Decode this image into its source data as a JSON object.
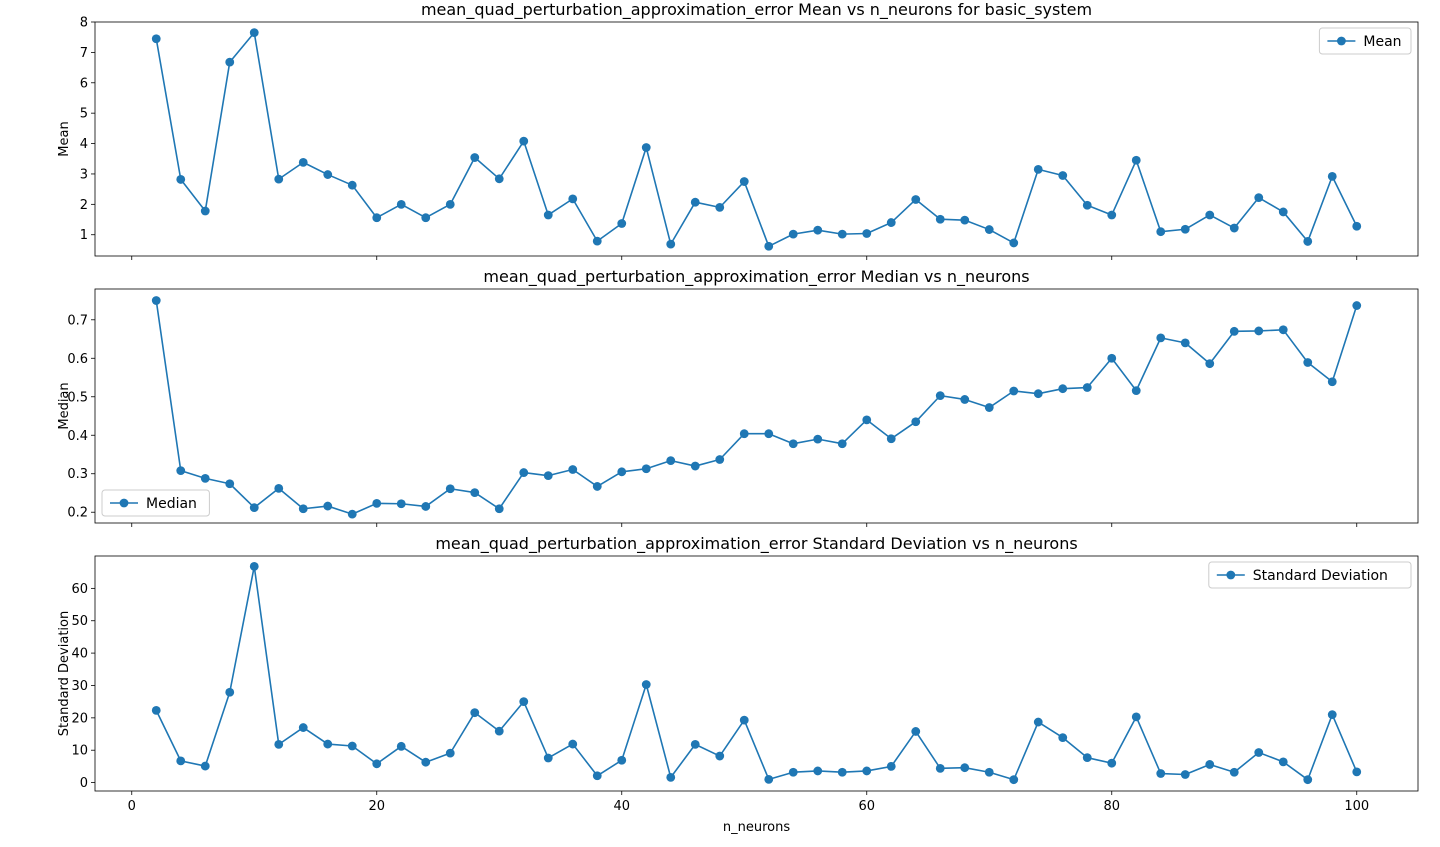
{
  "chart_data": [
    {
      "type": "line",
      "title": "mean_quad_perturbation_approximation_error Mean vs n_neurons for basic_system",
      "xlabel": "",
      "ylabel": "Mean",
      "xlim": [
        -3,
        105
      ],
      "ylim": [
        0.3,
        8.0
      ],
      "xticks": [
        0,
        20,
        40,
        60,
        80,
        100
      ],
      "yticks": [
        1,
        2,
        3,
        4,
        5,
        6,
        7,
        8
      ],
      "show_xtick_labels": false,
      "legend_position": "top-right",
      "color": "#1f77b4",
      "grid": false,
      "x": [
        2,
        4,
        6,
        8,
        10,
        12,
        14,
        16,
        18,
        20,
        22,
        24,
        26,
        28,
        30,
        32,
        34,
        36,
        38,
        40,
        42,
        44,
        46,
        48,
        50,
        52,
        54,
        56,
        58,
        60,
        62,
        64,
        66,
        68,
        70,
        72,
        74,
        76,
        78,
        80,
        82,
        84,
        86,
        88,
        90,
        92,
        94,
        96,
        98,
        100
      ],
      "series": [
        {
          "name": "Mean",
          "values": [
            7.45,
            2.82,
            1.78,
            6.68,
            7.65,
            2.83,
            3.38,
            2.98,
            2.63,
            1.56,
            2.0,
            1.56,
            2.0,
            3.54,
            2.84,
            4.08,
            1.65,
            2.18,
            0.79,
            1.37,
            3.87,
            0.69,
            2.07,
            1.9,
            2.75,
            0.62,
            1.02,
            1.15,
            1.02,
            1.04,
            1.4,
            2.16,
            1.51,
            1.48,
            1.17,
            0.73,
            3.15,
            2.95,
            1.97,
            1.65,
            3.45,
            1.1,
            1.18,
            1.65,
            1.22,
            2.22,
            1.75,
            0.78,
            2.92,
            1.28
          ]
        }
      ]
    },
    {
      "type": "line",
      "title": "mean_quad_perturbation_approximation_error Median vs n_neurons",
      "xlabel": "",
      "ylabel": "Median",
      "xlim": [
        -3,
        105
      ],
      "ylim": [
        0.172,
        0.78
      ],
      "xticks": [
        0,
        20,
        40,
        60,
        80,
        100
      ],
      "yticks": [
        0.2,
        0.3,
        0.4,
        0.5,
        0.6,
        0.7
      ],
      "show_xtick_labels": false,
      "legend_position": "bottom-left",
      "color": "#1f77b4",
      "grid": false,
      "x": [
        2,
        4,
        6,
        8,
        10,
        12,
        14,
        16,
        18,
        20,
        22,
        24,
        26,
        28,
        30,
        32,
        34,
        36,
        38,
        40,
        42,
        44,
        46,
        48,
        50,
        52,
        54,
        56,
        58,
        60,
        62,
        64,
        66,
        68,
        70,
        72,
        74,
        76,
        78,
        80,
        82,
        84,
        86,
        88,
        90,
        92,
        94,
        96,
        98,
        100
      ],
      "series": [
        {
          "name": "Median",
          "values": [
            0.75,
            0.308,
            0.288,
            0.274,
            0.212,
            0.262,
            0.209,
            0.216,
            0.195,
            0.223,
            0.222,
            0.215,
            0.261,
            0.251,
            0.209,
            0.303,
            0.295,
            0.311,
            0.267,
            0.305,
            0.313,
            0.334,
            0.32,
            0.337,
            0.404,
            0.404,
            0.378,
            0.39,
            0.378,
            0.44,
            0.391,
            0.435,
            0.503,
            0.493,
            0.472,
            0.515,
            0.508,
            0.521,
            0.524,
            0.6,
            0.516,
            0.653,
            0.64,
            0.586,
            0.67,
            0.671,
            0.674,
            0.589,
            0.539,
            0.737
          ]
        }
      ]
    },
    {
      "type": "line",
      "title": "mean_quad_perturbation_approximation_error Standard Deviation vs n_neurons",
      "xlabel": "n_neurons",
      "ylabel": "Standard Deviation",
      "xlim": [
        -3,
        105
      ],
      "ylim": [
        -2.6,
        70
      ],
      "xticks": [
        0,
        20,
        40,
        60,
        80,
        100
      ],
      "yticks": [
        0,
        10,
        20,
        30,
        40,
        50,
        60
      ],
      "show_xtick_labels": true,
      "legend_position": "top-right",
      "color": "#1f77b4",
      "grid": false,
      "x": [
        2,
        4,
        6,
        8,
        10,
        12,
        14,
        16,
        18,
        20,
        22,
        24,
        26,
        28,
        30,
        32,
        34,
        36,
        38,
        40,
        42,
        44,
        46,
        48,
        50,
        52,
        54,
        56,
        58,
        60,
        62,
        64,
        66,
        68,
        70,
        72,
        74,
        76,
        78,
        80,
        82,
        84,
        86,
        88,
        90,
        92,
        94,
        96,
        98,
        100
      ],
      "series": [
        {
          "name": "Standard Deviation",
          "values": [
            22.3,
            6.7,
            5.1,
            27.9,
            66.8,
            11.8,
            17.0,
            11.9,
            11.3,
            5.8,
            11.2,
            6.3,
            9.1,
            21.6,
            15.9,
            25.0,
            7.6,
            11.9,
            2.1,
            6.9,
            30.3,
            1.6,
            11.8,
            8.2,
            19.3,
            1.0,
            3.2,
            3.6,
            3.2,
            3.6,
            5.0,
            15.8,
            4.4,
            4.6,
            3.2,
            0.9,
            18.7,
            13.9,
            7.7,
            6.0,
            20.3,
            2.8,
            2.5,
            5.6,
            3.2,
            9.3,
            6.4,
            0.9,
            21.0,
            3.3
          ]
        }
      ]
    }
  ]
}
